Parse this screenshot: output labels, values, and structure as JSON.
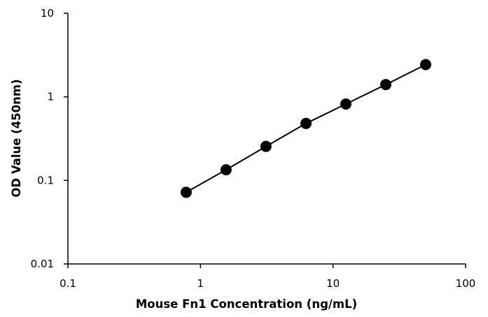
{
  "chart_data": {
    "type": "scatter",
    "title": "",
    "xlabel": "Mouse Fn1 Concentration (ng/mL)",
    "ylabel": "OD Value (450nm)",
    "x_scale": "log",
    "y_scale": "log",
    "xlim": [
      0.1,
      100
    ],
    "ylim": [
      0.01,
      10
    ],
    "x_ticks": [
      "0.1",
      "1",
      "10",
      "100"
    ],
    "y_ticks": [
      "0.01",
      "0.1",
      "1",
      "10"
    ],
    "grid": false,
    "legend": "none",
    "marker_color": "#000000",
    "line_color": "#000000",
    "series": [
      {
        "x": [
          0.78,
          1.56,
          3.12,
          6.25,
          12.5,
          25,
          50
        ],
        "y": [
          0.072,
          0.134,
          0.255,
          0.48,
          0.82,
          1.4,
          2.43
        ]
      }
    ]
  }
}
